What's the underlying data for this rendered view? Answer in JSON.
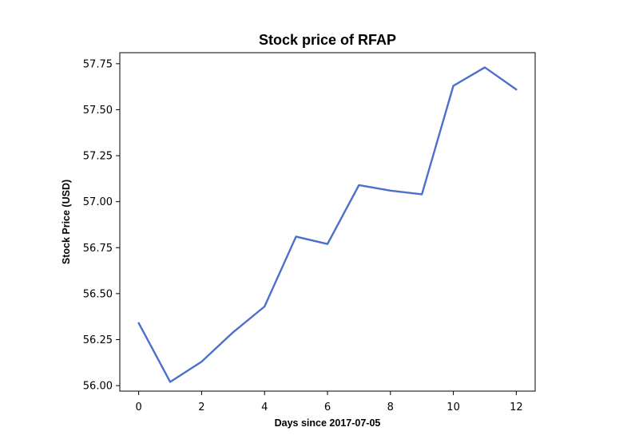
{
  "chart_data": {
    "type": "line",
    "title": "Stock price of RFAP",
    "xlabel": "Days since 2017-07-05",
    "ylabel": "Stock Price (USD)",
    "xlim": [
      -0.6,
      12.6
    ],
    "ylim": [
      55.97,
      57.81
    ],
    "x_ticks": [
      0,
      2,
      4,
      6,
      8,
      10,
      12
    ],
    "y_ticks": [
      "56.00",
      "56.25",
      "56.50",
      "56.75",
      "57.00",
      "57.25",
      "57.50",
      "57.75"
    ],
    "grid": false,
    "series": [
      {
        "color": "#4c6fcc",
        "x": [
          "2017-07-05",
          "2017-07-06",
          "2017-07-07",
          "2017-07-08",
          "2017-07-09",
          "2017-07-10",
          "2017-07-11",
          "2017-07-12",
          "2017-07-13",
          "2017-07-14",
          "2017-07-15",
          "2017-07-16",
          "2017-07-17"
        ],
        "values": [
          56.34,
          56.02,
          56.13,
          56.29,
          56.43,
          56.81,
          56.77,
          57.09,
          57.06,
          57.04,
          57.63,
          57.73,
          57.61
        ]
      }
    ]
  }
}
